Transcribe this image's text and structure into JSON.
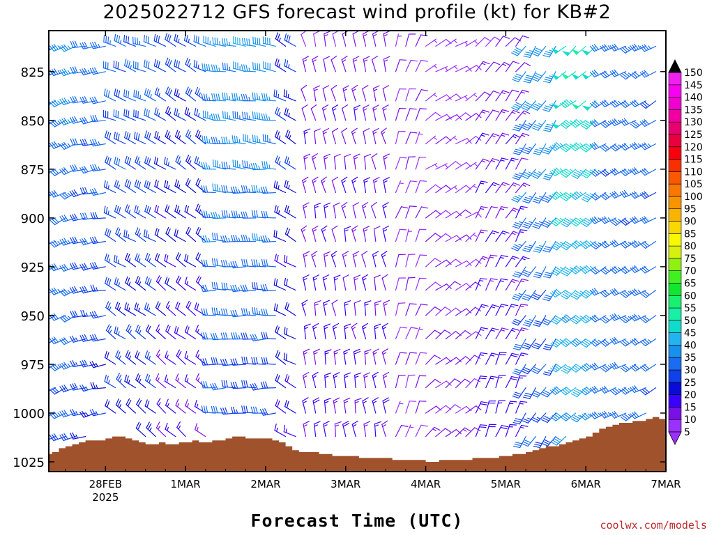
{
  "title": "2025022712 GFS forecast wind profile (kt) for KB#2",
  "credit": "coolwx.com/models",
  "chart_data": {
    "type": "wind-barb-profile",
    "title": "2025022712 GFS forecast wind profile (kt) for KB#2",
    "xlabel": "Forecast Time (UTC)",
    "ylabel": "",
    "x_ticks": [
      {
        "hour": 12,
        "label": "28FEB",
        "sublabel": "2025"
      },
      {
        "hour": 36,
        "label": "1MAR"
      },
      {
        "hour": 60,
        "label": "2MAR"
      },
      {
        "hour": 84,
        "label": "3MAR"
      },
      {
        "hour": 108,
        "label": "4MAR"
      },
      {
        "hour": 132,
        "label": "5MAR"
      },
      {
        "hour": 156,
        "label": "6MAR"
      },
      {
        "hour": 180,
        "label": "7MAR"
      }
    ],
    "xlim": [
      -5,
      180
    ],
    "y_ticks": [
      825,
      850,
      875,
      900,
      925,
      950,
      975,
      1000,
      1025
    ],
    "ylim": [
      1030,
      804
    ],
    "levels": [
      812,
      825,
      840,
      850,
      862,
      875,
      887,
      900,
      912,
      925,
      937,
      950,
      962,
      975,
      987,
      1000,
      1012
    ],
    "colorbar": {
      "labels": [
        5,
        10,
        15,
        20,
        25,
        30,
        35,
        40,
        45,
        50,
        55,
        60,
        65,
        70,
        75,
        80,
        85,
        90,
        95,
        100,
        105,
        110,
        115,
        120,
        125,
        130,
        135,
        140,
        145,
        150
      ],
      "colors": [
        "#9b30ff",
        "#7a10e8",
        "#3a00ff",
        "#0b0bd8",
        "#1040e8",
        "#1a6cf0",
        "#1890ee",
        "#20b4f0",
        "#10dccc",
        "#18f0a8",
        "#18f070",
        "#10e830",
        "#40f020",
        "#90f010",
        "#d8f010",
        "#f8f800",
        "#f8d800",
        "#f8b400",
        "#f89400",
        "#f87800",
        "#f85800",
        "#f83000",
        "#f80010",
        "#e80040",
        "#e80070",
        "#f000a0",
        "#f000d0",
        "#f800f0",
        "#f020f0",
        "#000000"
      ]
    },
    "terrain": {
      "color": "#a0522d",
      "hours": [
        -5,
        -3,
        -1,
        1,
        3,
        5,
        7,
        9,
        11,
        13,
        15,
        17,
        19,
        21,
        23,
        25,
        27,
        29,
        31,
        33,
        35,
        37,
        39,
        41,
        43,
        45,
        47,
        49,
        51,
        53,
        55,
        57,
        59,
        61,
        63,
        65,
        67,
        69,
        71,
        73,
        75,
        77,
        79,
        81,
        83,
        85,
        87,
        89,
        91,
        93,
        95,
        97,
        99,
        101,
        103,
        105,
        107,
        109,
        111,
        113,
        115,
        117,
        119,
        121,
        123,
        125,
        127,
        129,
        131,
        133,
        135,
        137,
        139,
        141,
        143,
        145,
        147,
        149,
        151,
        153,
        155,
        157,
        159,
        161,
        163,
        165,
        167,
        169,
        171,
        173,
        175,
        177,
        179
      ],
      "pressure": [
        1021,
        1020,
        1018,
        1017,
        1016,
        1015,
        1014,
        1014,
        1014,
        1013,
        1012,
        1012,
        1013,
        1014,
        1015,
        1016,
        1016,
        1015,
        1016,
        1016,
        1015,
        1015,
        1014,
        1015,
        1015,
        1014,
        1014,
        1013,
        1012,
        1012,
        1013,
        1013,
        1013,
        1013,
        1014,
        1015,
        1017,
        1019,
        1020,
        1020,
        1020,
        1021,
        1021,
        1022,
        1022,
        1022,
        1022,
        1023,
        1023,
        1023,
        1023,
        1023,
        1024,
        1024,
        1024,
        1024,
        1024,
        1025,
        1025,
        1024,
        1024,
        1024,
        1024,
        1024,
        1023,
        1023,
        1023,
        1023,
        1022,
        1022,
        1021,
        1021,
        1020,
        1019,
        1018,
        1017,
        1017,
        1016,
        1015,
        1014,
        1013,
        1012,
        1010,
        1008,
        1007,
        1006,
        1005,
        1005,
        1004,
        1004,
        1003,
        1002,
        1003
      ]
    }
  }
}
